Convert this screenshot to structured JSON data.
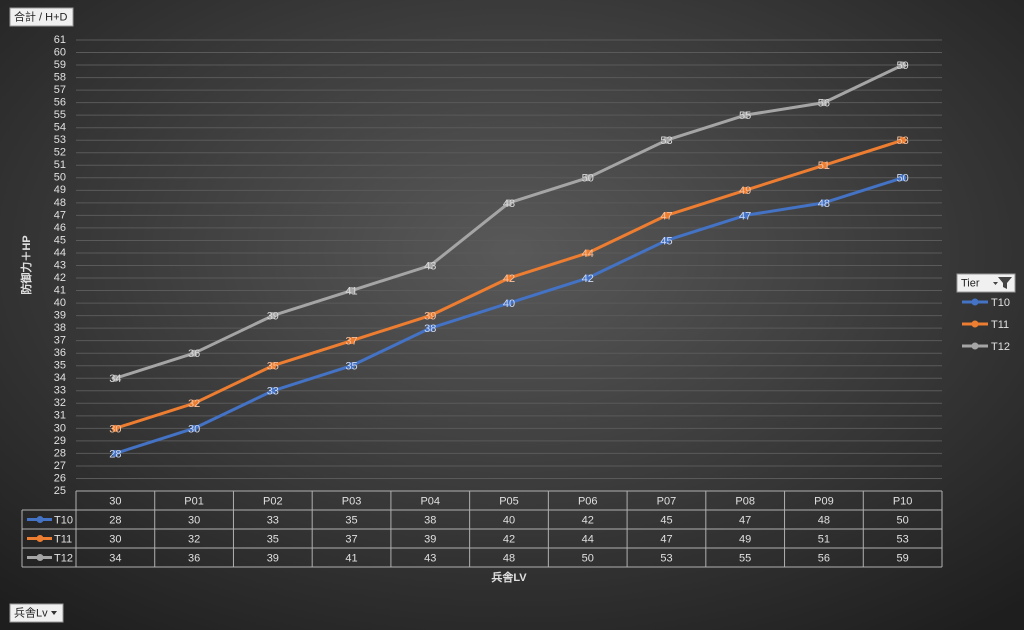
{
  "chart_data": {
    "type": "line",
    "field_button": "合計 / H+D",
    "axis_field_button": "兵舎Lv",
    "legend_title": "Tier",
    "y_label": "防御力＋HP",
    "x_label": "兵舎LV",
    "categories": [
      "30",
      "P01",
      "P02",
      "P03",
      "P04",
      "P05",
      "P06",
      "P07",
      "P08",
      "P09",
      "P10"
    ],
    "series": [
      {
        "name": "T10",
        "color": "#4472c4",
        "values": [
          28,
          30,
          33,
          35,
          38,
          40,
          42,
          45,
          47,
          48,
          50
        ]
      },
      {
        "name": "T11",
        "color": "#ed7d31",
        "values": [
          30,
          32,
          35,
          37,
          39,
          42,
          44,
          47,
          49,
          51,
          53
        ]
      },
      {
        "name": "T12",
        "color": "#a5a5a5",
        "values": [
          34,
          36,
          39,
          41,
          43,
          48,
          50,
          53,
          55,
          56,
          59
        ]
      }
    ],
    "ylim": [
      25,
      61
    ],
    "yticks": [
      25,
      26,
      27,
      28,
      29,
      30,
      31,
      32,
      33,
      34,
      35,
      36,
      37,
      38,
      39,
      40,
      41,
      42,
      43,
      44,
      45,
      46,
      47,
      48,
      49,
      50,
      51,
      52,
      53,
      54,
      55,
      56,
      57,
      58,
      59,
      60,
      61
    ],
    "grid": true,
    "legend_position": "right",
    "data_labels": true,
    "data_table": true
  }
}
